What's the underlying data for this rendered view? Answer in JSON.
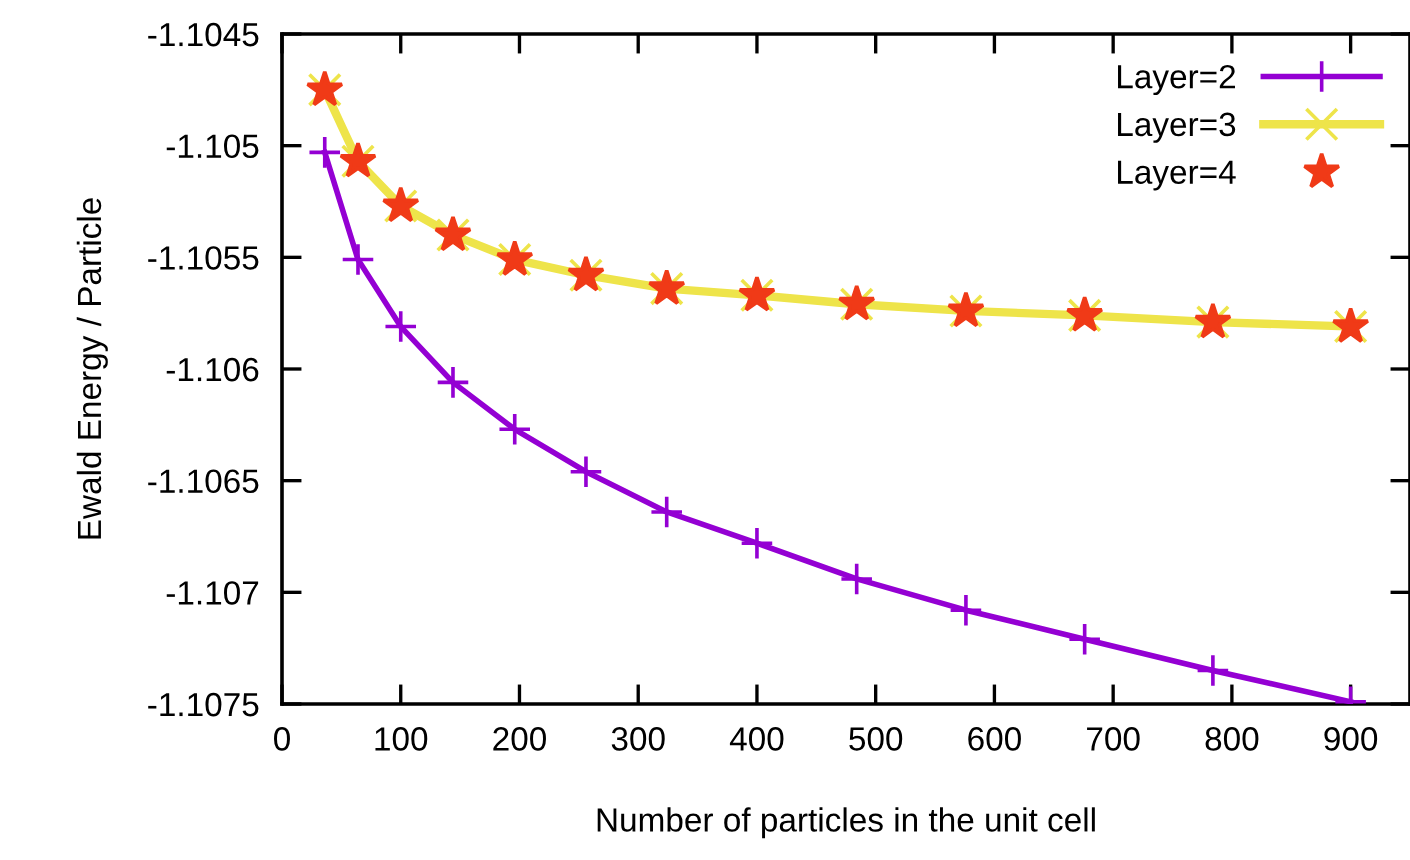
{
  "chart_data": {
    "type": "line",
    "xlabel": "Number of particles in the unit cell",
    "ylabel": "Ewald Energy / Particle",
    "x": [
      36,
      64,
      100,
      144,
      196,
      256,
      324,
      400,
      484,
      576,
      676,
      784,
      900
    ],
    "series": [
      {
        "name": "Layer=2",
        "color": "#9400d3",
        "marker": "cross",
        "values": [
          -1.10503,
          -1.10551,
          -1.10581,
          -1.10606,
          -1.10627,
          -1.10646,
          -1.10664,
          -1.10678,
          -1.10694,
          -1.10708,
          -1.10721,
          -1.10735,
          -1.10749
        ]
      },
      {
        "name": "Layer=3",
        "color": "#eee44a",
        "marker": "cross",
        "values": [
          -1.10475,
          -1.10507,
          -1.10527,
          -1.1054,
          -1.10551,
          -1.10558,
          -1.10564,
          -1.10567,
          -1.10571,
          -1.10574,
          -1.10576,
          -1.10579,
          -1.10581
        ]
      },
      {
        "name": "Layer=4",
        "color": "#f03a17",
        "type": "scatter",
        "marker": "star",
        "values": [
          -1.10475,
          -1.10507,
          -1.10527,
          -1.1054,
          -1.10551,
          -1.10558,
          -1.10564,
          -1.10567,
          -1.10571,
          -1.10574,
          -1.10576,
          -1.10579,
          -1.10581
        ]
      }
    ],
    "xlim": [
      0,
      950
    ],
    "xticks": [
      0,
      100,
      200,
      300,
      400,
      500,
      600,
      700,
      800,
      900
    ],
    "ylim": [
      -1.1075,
      -1.1045
    ],
    "yticks": [
      {
        "value": -1.1045,
        "label": "-1.1045"
      },
      {
        "value": -1.105,
        "label": "-1.105"
      },
      {
        "value": -1.1055,
        "label": "-1.1055"
      },
      {
        "value": -1.106,
        "label": "-1.106"
      },
      {
        "value": -1.1065,
        "label": "-1.1065"
      },
      {
        "value": -1.107,
        "label": "-1.107"
      },
      {
        "value": -1.1075,
        "label": "-1.1075"
      }
    ],
    "grid": false,
    "legend": "top right"
  }
}
